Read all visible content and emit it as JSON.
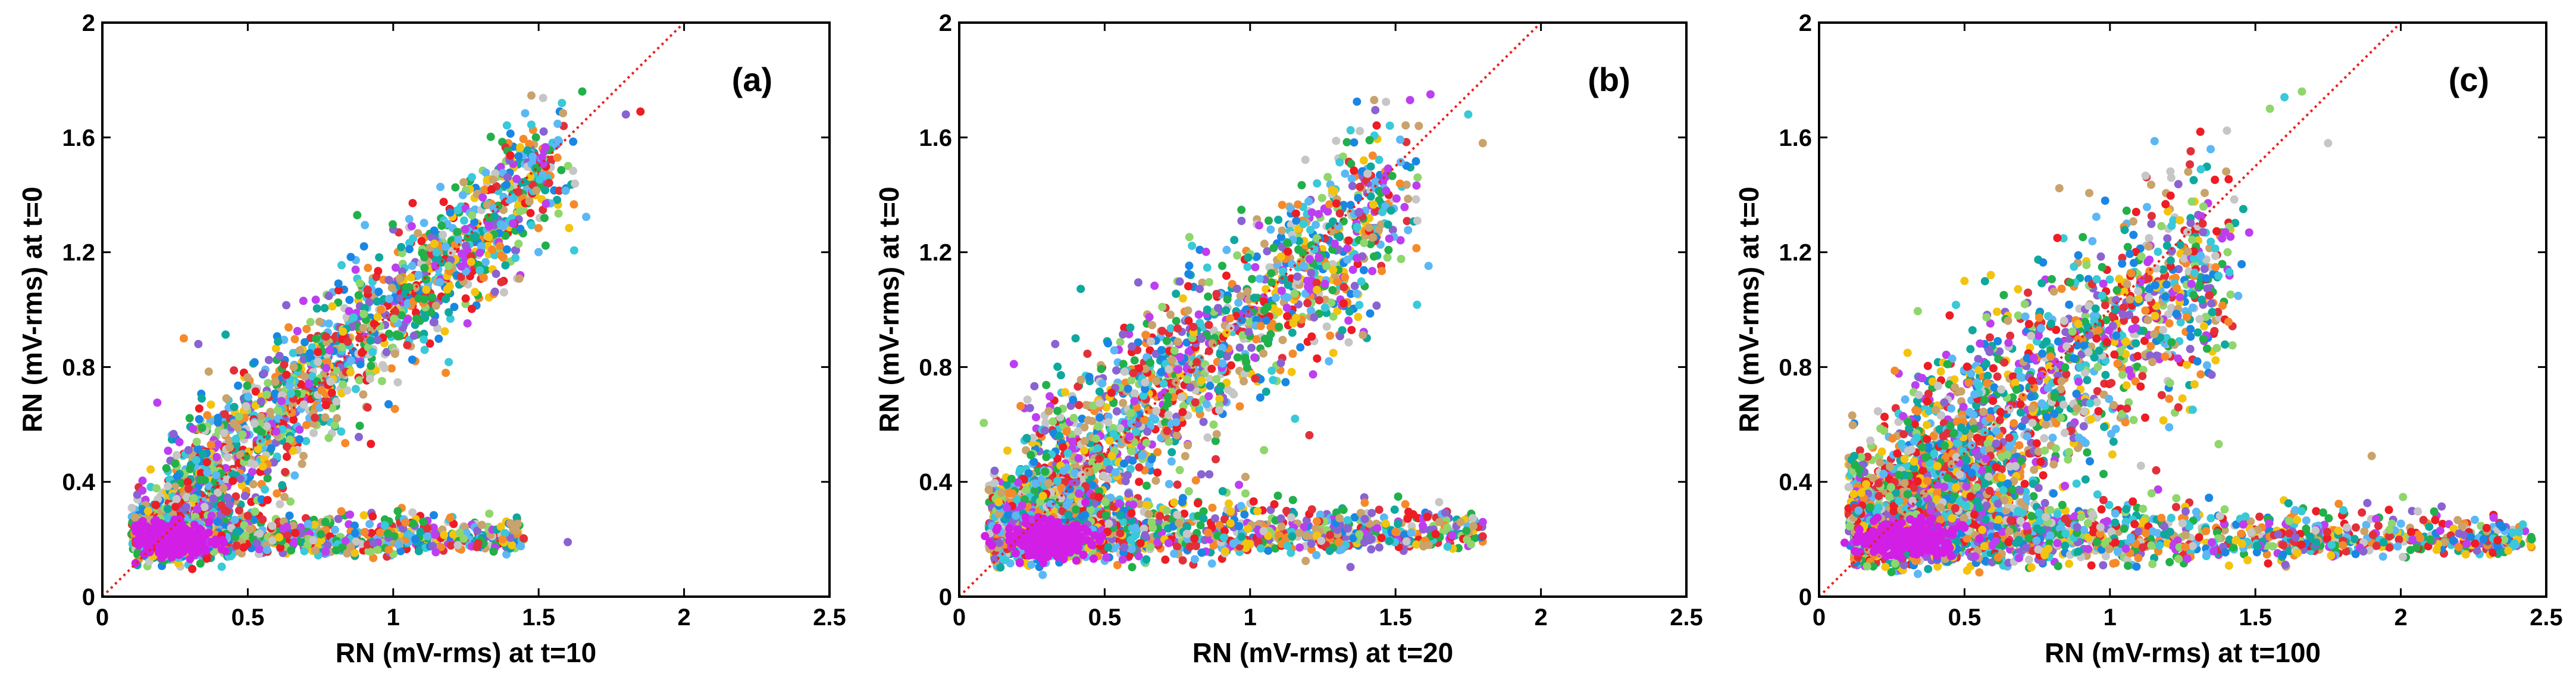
{
  "chart_data": [
    {
      "type": "scatter",
      "panel_label": "(a)",
      "xlabel": "RN (mV-rms) at t=10",
      "ylabel": "RN (mV-rms) at t=0",
      "xlim": [
        0,
        2.5
      ],
      "ylim": [
        0,
        2
      ],
      "xticks": [
        0,
        0.5,
        1,
        1.5,
        2,
        2.5
      ],
      "yticks": [
        0,
        0.4,
        0.8,
        1.2,
        1.6,
        2
      ],
      "xtick_labels": [
        "0",
        "0.5",
        "1",
        "1.5",
        "2",
        "2.5"
      ],
      "ytick_labels": [
        "0",
        "0.4",
        "0.8",
        "1.2",
        "1.6",
        "2"
      ],
      "reference_line": {
        "style": "dotted",
        "color": "#e8221c",
        "from": [
          0,
          0
        ],
        "to": [
          2,
          2
        ]
      },
      "clusters": [
        {
          "name": "diagonal branch",
          "x_from": 0.25,
          "x_to": 1.55,
          "slope": 0.92,
          "offset": 0.08,
          "spread": 0.12,
          "n": 1700
        },
        {
          "name": "low branch",
          "x_from": 0.12,
          "x_to": 1.45,
          "y_center": 0.2,
          "spread": 0.06,
          "n": 1000
        },
        {
          "name": "origin cluster",
          "x_center": 0.25,
          "y_center": 0.2,
          "spread_x": 0.1,
          "spread_y": 0.06,
          "n": 700
        },
        {
          "name": "magenta core",
          "x_center": 0.25,
          "y_center": 0.2,
          "spread_x": 0.06,
          "spread_y": 0.03,
          "n": 260
        }
      ],
      "outliers": [
        [
          1.65,
          1.76
        ],
        [
          1.58,
          1.72
        ],
        [
          1.8,
          1.68
        ],
        [
          1.85,
          1.69
        ],
        [
          0.28,
          0.9
        ],
        [
          0.33,
          0.88
        ],
        [
          1.6,
          0.19
        ]
      ]
    },
    {
      "type": "scatter",
      "panel_label": "(b)",
      "xlabel": "RN (mV-rms) at t=20",
      "ylabel": "RN (mV-rms) at t=0",
      "xlim": [
        0,
        2.5
      ],
      "ylim": [
        0,
        2
      ],
      "xticks": [
        0,
        0.5,
        1,
        1.5,
        2,
        2.5
      ],
      "yticks": [
        0,
        0.4,
        0.8,
        1.2,
        1.6,
        2
      ],
      "xtick_labels": [
        "0",
        "0.5",
        "1",
        "1.5",
        "2",
        "2.5"
      ],
      "ytick_labels": [
        "0",
        "0.4",
        "0.8",
        "1.2",
        "1.6",
        "2"
      ],
      "reference_line": {
        "style": "dotted",
        "color": "#e8221c",
        "from": [
          0,
          0
        ],
        "to": [
          2,
          2
        ]
      },
      "clusters": [
        {
          "name": "diagonal branch",
          "x_from": 0.25,
          "x_to": 1.5,
          "slope": 0.85,
          "offset": 0.12,
          "spread": 0.16,
          "n": 1600
        },
        {
          "name": "low branch",
          "x_from": 0.12,
          "x_to": 1.8,
          "y_center": 0.22,
          "spread": 0.08,
          "n": 1300
        },
        {
          "name": "origin cluster",
          "x_center": 0.3,
          "y_center": 0.25,
          "spread_x": 0.12,
          "spread_y": 0.08,
          "n": 700
        },
        {
          "name": "magenta core",
          "x_center": 0.3,
          "y_center": 0.2,
          "spread_x": 0.07,
          "spread_y": 0.03,
          "n": 260
        }
      ],
      "outliers": [
        [
          1.62,
          1.75
        ],
        [
          1.55,
          1.73
        ],
        [
          1.58,
          1.64
        ],
        [
          1.75,
          1.68
        ],
        [
          1.8,
          1.58
        ],
        [
          0.33,
          0.88
        ],
        [
          0.4,
          0.9
        ],
        [
          1.8,
          0.26
        ]
      ]
    },
    {
      "type": "scatter",
      "panel_label": "(c)",
      "xlabel": "RN (mV-rms) at t=100",
      "ylabel": "RN (mV-rms) at t=0",
      "xlim": [
        0,
        2.5
      ],
      "ylim": [
        0,
        2
      ],
      "xticks": [
        0,
        0.5,
        1,
        1.5,
        2,
        2.5
      ],
      "yticks": [
        0,
        0.4,
        0.8,
        1.2,
        1.6,
        2
      ],
      "xtick_labels": [
        "0",
        "0.5",
        "1",
        "1.5",
        "2",
        "2.5"
      ],
      "ytick_labels": [
        "0",
        "0.4",
        "0.8",
        "1.2",
        "1.6",
        "2"
      ],
      "reference_line": {
        "style": "dotted",
        "color": "#e8221c",
        "from": [
          0,
          0
        ],
        "to": [
          2,
          2
        ]
      },
      "clusters": [
        {
          "name": "diagonal branch",
          "x_from": 0.3,
          "x_to": 1.4,
          "slope": 0.75,
          "offset": 0.15,
          "spread": 0.2,
          "n": 1500
        },
        {
          "name": "low branch",
          "x_from": 0.12,
          "x_to": 2.45,
          "y_center": 0.2,
          "spread": 0.08,
          "n": 1600
        },
        {
          "name": "origin cluster",
          "x_center": 0.35,
          "y_center": 0.3,
          "spread_x": 0.18,
          "spread_y": 0.12,
          "n": 800
        },
        {
          "name": "magenta core",
          "x_center": 0.3,
          "y_center": 0.2,
          "spread_x": 0.08,
          "spread_y": 0.03,
          "n": 260
        }
      ],
      "outliers": [
        [
          1.6,
          1.74
        ],
        [
          1.66,
          1.76
        ],
        [
          1.75,
          1.58
        ],
        [
          1.55,
          1.7
        ],
        [
          0.5,
          1.1
        ],
        [
          1.9,
          0.49
        ],
        [
          2.45,
          0.2
        ],
        [
          2.2,
          0.22
        ]
      ]
    }
  ],
  "palette": [
    "#ee1c24",
    "#1a86e3",
    "#22b04a",
    "#f3c40f",
    "#39c9d8",
    "#c9a36b",
    "#bd3ef0",
    "#8fd66d",
    "#f58a2a",
    "#5bb8f5",
    "#e2303a",
    "#0fa89e",
    "#c6c6c6",
    "#8a63d2"
  ],
  "core_color": "#d21fe6",
  "axis_color": "#000000"
}
